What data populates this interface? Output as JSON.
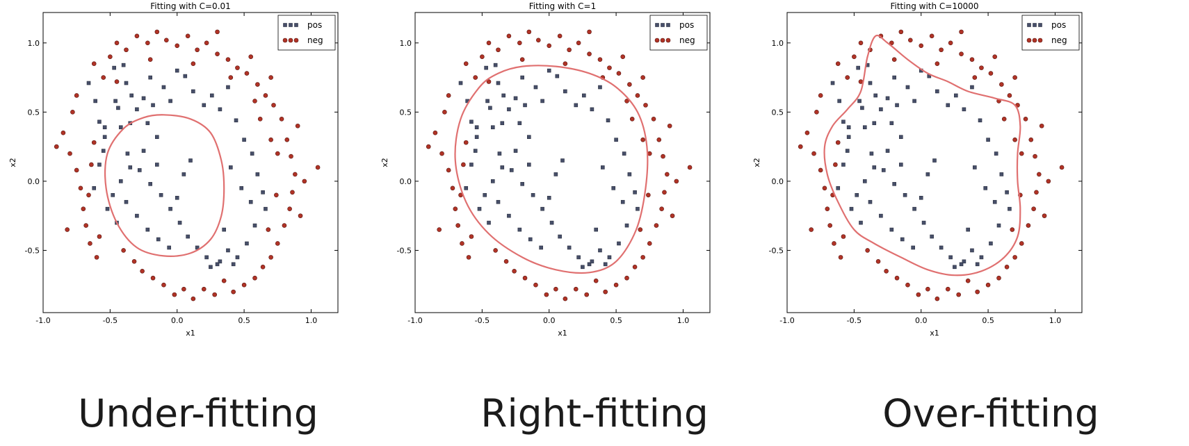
{
  "chart_data": [
    {
      "type": "scatter",
      "title": "Fitting with C=0.01",
      "xlabel": "x1",
      "ylabel": "x2",
      "xlim": [
        -1.0,
        1.2
      ],
      "ylim": [
        -0.95,
        1.22
      ],
      "xticks": [
        "-1.0",
        "-0.5",
        "0.0",
        "0.5",
        "1.0"
      ],
      "yticks": [
        "-0.5",
        "0.0",
        "0.5",
        "1.0"
      ],
      "legend": {
        "placement": "top-right",
        "entries": [
          "pos",
          "neg"
        ]
      },
      "decision_boundary": {
        "color": "#e07070",
        "points": [
          [
            -0.1,
            0.48
          ],
          [
            0.1,
            0.45
          ],
          [
            0.25,
            0.35
          ],
          [
            0.33,
            0.15
          ],
          [
            0.35,
            -0.05
          ],
          [
            0.33,
            -0.25
          ],
          [
            0.25,
            -0.42
          ],
          [
            0.1,
            -0.52
          ],
          [
            -0.1,
            -0.54
          ],
          [
            -0.3,
            -0.48
          ],
          [
            -0.45,
            -0.3
          ],
          [
            -0.53,
            -0.05
          ],
          [
            -0.52,
            0.2
          ],
          [
            -0.4,
            0.38
          ],
          [
            -0.25,
            0.46
          ]
        ]
      }
    },
    {
      "type": "scatter",
      "title": "Fitting with C=1",
      "xlabel": "x1",
      "ylabel": "x2",
      "xlim": [
        -1.0,
        1.2
      ],
      "ylim": [
        -0.95,
        1.22
      ],
      "xticks": [
        "-1.0",
        "-0.5",
        "0.0",
        "0.5",
        "1.0"
      ],
      "yticks": [
        "-0.5",
        "0.0",
        "0.5",
        "1.0"
      ],
      "legend": {
        "placement": "top-right",
        "entries": [
          "pos",
          "neg"
        ]
      },
      "decision_boundary": {
        "color": "#e07070",
        "points": [
          [
            -0.2,
            0.83
          ],
          [
            0.05,
            0.83
          ],
          [
            0.3,
            0.78
          ],
          [
            0.5,
            0.68
          ],
          [
            0.66,
            0.5
          ],
          [
            0.73,
            0.25
          ],
          [
            0.72,
            -0.05
          ],
          [
            0.65,
            -0.35
          ],
          [
            0.5,
            -0.58
          ],
          [
            0.3,
            -0.66
          ],
          [
            0.05,
            -0.64
          ],
          [
            -0.2,
            -0.55
          ],
          [
            -0.45,
            -0.38
          ],
          [
            -0.62,
            -0.15
          ],
          [
            -0.7,
            0.15
          ],
          [
            -0.66,
            0.45
          ],
          [
            -0.52,
            0.68
          ],
          [
            -0.38,
            0.78
          ]
        ]
      }
    },
    {
      "type": "scatter",
      "title": "Fitting with C=10000",
      "xlabel": "x1",
      "ylabel": "x2",
      "xlim": [
        -1.0,
        1.2
      ],
      "ylim": [
        -0.95,
        1.22
      ],
      "xticks": [
        "-1.0",
        "-0.5",
        "0.0",
        "0.5",
        "1.0"
      ],
      "yticks": [
        "-0.5",
        "0.0",
        "0.5",
        "1.0"
      ],
      "legend": {
        "placement": "top-right",
        "entries": [
          "pos",
          "neg"
        ]
      },
      "decision_boundary": {
        "color": "#e07070",
        "points": [
          [
            -0.34,
            1.05
          ],
          [
            -0.25,
            1.0
          ],
          [
            -0.1,
            0.88
          ],
          [
            0.05,
            0.78
          ],
          [
            0.2,
            0.72
          ],
          [
            0.35,
            0.65
          ],
          [
            0.55,
            0.6
          ],
          [
            0.7,
            0.55
          ],
          [
            0.74,
            0.4
          ],
          [
            0.72,
            0.2
          ],
          [
            0.72,
            0.0
          ],
          [
            0.74,
            -0.2
          ],
          [
            0.72,
            -0.4
          ],
          [
            0.62,
            -0.55
          ],
          [
            0.45,
            -0.65
          ],
          [
            0.25,
            -0.68
          ],
          [
            0.05,
            -0.64
          ],
          [
            -0.15,
            -0.55
          ],
          [
            -0.35,
            -0.45
          ],
          [
            -0.5,
            -0.35
          ],
          [
            -0.62,
            -0.15
          ],
          [
            -0.7,
            0.05
          ],
          [
            -0.72,
            0.25
          ],
          [
            -0.66,
            0.4
          ],
          [
            -0.55,
            0.52
          ],
          [
            -0.45,
            0.65
          ],
          [
            -0.4,
            0.9
          ]
        ]
      }
    }
  ],
  "scatter_points": {
    "pos": [
      [
        -0.66,
        0.71
      ],
      [
        -0.61,
        0.58
      ],
      [
        -0.58,
        0.43
      ],
      [
        -0.54,
        0.39
      ],
      [
        -0.54,
        0.32
      ],
      [
        -0.47,
        0.82
      ],
      [
        -0.46,
        0.58
      ],
      [
        -0.44,
        0.53
      ],
      [
        -0.42,
        0.39
      ],
      [
        -0.4,
        0.84
      ],
      [
        -0.38,
        0.71
      ],
      [
        -0.37,
        0.2
      ],
      [
        -0.35,
        0.42
      ],
      [
        -0.3,
        0.52
      ],
      [
        -0.25,
        0.6
      ],
      [
        -0.2,
        0.75
      ],
      [
        -0.18,
        0.55
      ],
      [
        -0.15,
        0.32
      ],
      [
        -0.1,
        0.68
      ],
      [
        -0.05,
        0.58
      ],
      [
        0.0,
        0.8
      ],
      [
        0.06,
        0.76
      ],
      [
        0.12,
        0.65
      ],
      [
        0.2,
        0.55
      ],
      [
        0.26,
        0.62
      ],
      [
        0.32,
        0.52
      ],
      [
        0.38,
        0.68
      ],
      [
        0.44,
        0.44
      ],
      [
        0.5,
        0.3
      ],
      [
        0.56,
        0.2
      ],
      [
        0.6,
        0.05
      ],
      [
        0.64,
        -0.08
      ],
      [
        0.66,
        -0.2
      ],
      [
        0.58,
        -0.32
      ],
      [
        0.52,
        -0.45
      ],
      [
        0.45,
        -0.55
      ],
      [
        0.38,
        -0.5
      ],
      [
        0.3,
        -0.6
      ],
      [
        0.22,
        -0.55
      ],
      [
        0.15,
        -0.48
      ],
      [
        0.08,
        -0.4
      ],
      [
        0.02,
        -0.3
      ],
      [
        -0.05,
        -0.2
      ],
      [
        -0.12,
        -0.1
      ],
      [
        -0.2,
        -0.02
      ],
      [
        -0.28,
        0.08
      ],
      [
        -0.35,
        0.1
      ],
      [
        -0.42,
        0.0
      ],
      [
        -0.48,
        -0.1
      ],
      [
        -0.52,
        -0.2
      ],
      [
        -0.45,
        -0.3
      ],
      [
        -0.38,
        -0.15
      ],
      [
        -0.3,
        -0.25
      ],
      [
        -0.22,
        -0.35
      ],
      [
        -0.14,
        -0.42
      ],
      [
        -0.06,
        -0.48
      ],
      [
        0.0,
        -0.12
      ],
      [
        0.05,
        0.05
      ],
      [
        0.1,
        0.15
      ],
      [
        -0.58,
        0.12
      ],
      [
        -0.62,
        -0.05
      ],
      [
        -0.55,
        0.22
      ],
      [
        -0.34,
        0.62
      ],
      [
        -0.22,
        0.42
      ],
      [
        0.4,
        0.1
      ],
      [
        0.48,
        -0.05
      ],
      [
        0.55,
        -0.15
      ],
      [
        0.35,
        -0.35
      ],
      [
        -0.25,
        0.22
      ],
      [
        -0.15,
        0.12
      ],
      [
        0.25,
        -0.62
      ],
      [
        0.32,
        -0.58
      ],
      [
        0.42,
        -0.6
      ]
    ],
    "neg": [
      [
        -0.85,
        0.35
      ],
      [
        -0.8,
        0.2
      ],
      [
        -0.78,
        0.5
      ],
      [
        -0.75,
        0.08
      ],
      [
        -0.72,
        -0.05
      ],
      [
        -0.7,
        -0.2
      ],
      [
        -0.68,
        -0.32
      ],
      [
        -0.65,
        -0.45
      ],
      [
        -0.6,
        -0.55
      ],
      [
        -0.55,
        0.75
      ],
      [
        -0.5,
        0.9
      ],
      [
        -0.45,
        1.0
      ],
      [
        -0.38,
        0.95
      ],
      [
        -0.3,
        1.05
      ],
      [
        -0.22,
        1.0
      ],
      [
        -0.15,
        1.08
      ],
      [
        -0.08,
        1.02
      ],
      [
        0.0,
        0.98
      ],
      [
        0.08,
        1.05
      ],
      [
        0.15,
        0.95
      ],
      [
        0.22,
        1.0
      ],
      [
        0.3,
        0.92
      ],
      [
        0.38,
        0.88
      ],
      [
        0.45,
        0.82
      ],
      [
        0.52,
        0.78
      ],
      [
        0.6,
        0.7
      ],
      [
        0.66,
        0.62
      ],
      [
        0.72,
        0.55
      ],
      [
        0.78,
        0.45
      ],
      [
        0.82,
        0.3
      ],
      [
        0.85,
        0.18
      ],
      [
        0.88,
        0.05
      ],
      [
        0.86,
        -0.08
      ],
      [
        0.84,
        -0.2
      ],
      [
        0.8,
        -0.32
      ],
      [
        0.75,
        -0.45
      ],
      [
        0.7,
        -0.55
      ],
      [
        0.64,
        -0.62
      ],
      [
        0.58,
        -0.7
      ],
      [
        0.5,
        -0.75
      ],
      [
        0.42,
        -0.8
      ],
      [
        0.35,
        -0.72
      ],
      [
        0.28,
        -0.82
      ],
      [
        0.2,
        -0.78
      ],
      [
        0.12,
        -0.85
      ],
      [
        0.05,
        -0.78
      ],
      [
        -0.02,
        -0.82
      ],
      [
        -0.1,
        -0.75
      ],
      [
        -0.18,
        -0.7
      ],
      [
        -0.26,
        -0.65
      ],
      [
        -0.32,
        -0.58
      ],
      [
        -0.4,
        -0.5
      ],
      [
        -0.9,
        0.25
      ],
      [
        -0.82,
        -0.35
      ],
      [
        0.95,
        0.0
      ],
      [
        1.05,
        0.1
      ],
      [
        0.92,
        -0.25
      ],
      [
        -0.75,
        0.62
      ],
      [
        0.7,
        0.75
      ],
      [
        0.55,
        0.9
      ],
      [
        -0.62,
        0.85
      ],
      [
        0.3,
        1.08
      ],
      [
        0.9,
        0.4
      ],
      [
        0.62,
        0.45
      ],
      [
        0.7,
        0.3
      ],
      [
        0.58,
        0.58
      ],
      [
        -0.62,
        0.28
      ],
      [
        -0.64,
        0.12
      ],
      [
        -0.66,
        -0.1
      ],
      [
        -0.58,
        -0.4
      ],
      [
        0.4,
        0.75
      ],
      [
        -0.2,
        0.88
      ],
      [
        0.12,
        0.85
      ],
      [
        -0.45,
        0.72
      ],
      [
        0.75,
        0.2
      ],
      [
        0.74,
        -0.1
      ],
      [
        0.68,
        -0.35
      ]
    ]
  },
  "captions": [
    "Under-fitting",
    "Right-fitting",
    "Over-fitting"
  ],
  "colors": {
    "pos": "#474f69",
    "neg": "#b03326",
    "boundary": "#e07070",
    "axes": "#000000"
  }
}
